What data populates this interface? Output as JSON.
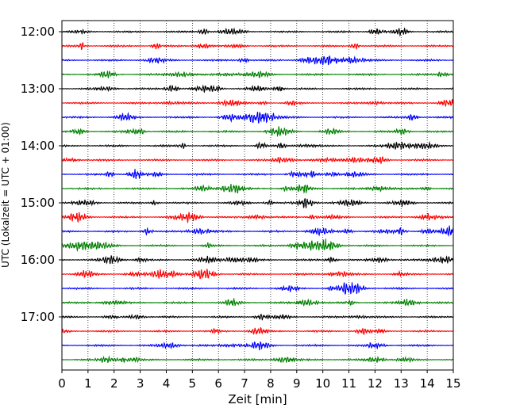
{
  "chart_data": {
    "type": "line",
    "title": "",
    "xlabel": "Zeit  [min]",
    "ylabel": "UTC (Lokalzeit = UTC + 01:00)",
    "xlim": [
      0,
      15
    ],
    "x_ticks": [
      "0",
      "1",
      "2",
      "3",
      "4",
      "5",
      "6",
      "7",
      "8",
      "9",
      "10",
      "11",
      "12",
      "13",
      "14",
      "15"
    ],
    "y_ticks": [
      "12:00",
      "13:00",
      "14:00",
      "15:00",
      "16:00",
      "17:00"
    ],
    "grid": "vertical dotted at each minute",
    "colors": [
      "#000000",
      "#ff0000",
      "#0000ff",
      "#008000"
    ],
    "traces": [
      {
        "start": "12:00",
        "color": "#000000"
      },
      {
        "start": "12:15",
        "color": "#ff0000"
      },
      {
        "start": "12:30",
        "color": "#0000ff"
      },
      {
        "start": "12:45",
        "color": "#008000"
      },
      {
        "start": "13:00",
        "color": "#000000"
      },
      {
        "start": "13:15",
        "color": "#ff0000"
      },
      {
        "start": "13:30",
        "color": "#0000ff"
      },
      {
        "start": "13:45",
        "color": "#008000"
      },
      {
        "start": "14:00",
        "color": "#000000"
      },
      {
        "start": "14:15",
        "color": "#ff0000"
      },
      {
        "start": "14:30",
        "color": "#0000ff"
      },
      {
        "start": "14:45",
        "color": "#008000"
      },
      {
        "start": "15:00",
        "color": "#000000"
      },
      {
        "start": "15:15",
        "color": "#ff0000"
      },
      {
        "start": "15:30",
        "color": "#0000ff"
      },
      {
        "start": "15:45",
        "color": "#008000"
      },
      {
        "start": "16:00",
        "color": "#000000"
      },
      {
        "start": "16:15",
        "color": "#ff0000"
      },
      {
        "start": "16:30",
        "color": "#0000ff"
      },
      {
        "start": "16:45",
        "color": "#008000"
      },
      {
        "start": "17:00",
        "color": "#000000"
      },
      {
        "start": "17:15",
        "color": "#ff0000"
      },
      {
        "start": "17:30",
        "color": "#0000ff"
      },
      {
        "start": "17:45",
        "color": "#008000"
      }
    ]
  }
}
